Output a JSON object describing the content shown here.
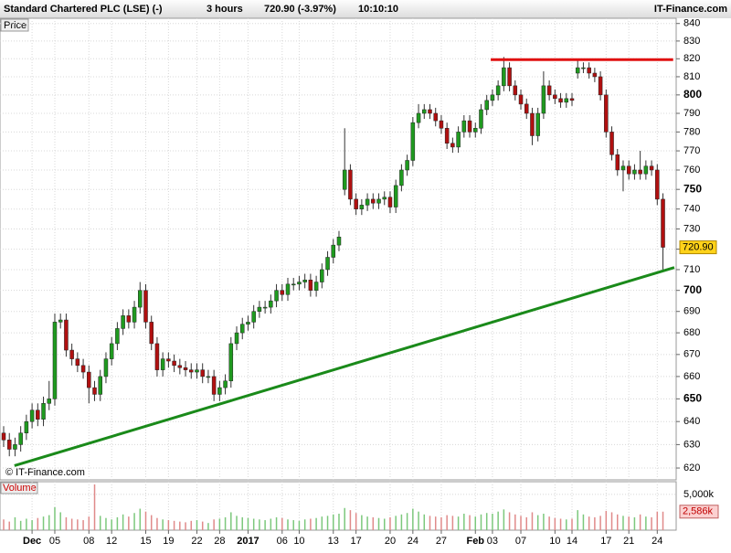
{
  "chart_data": {
    "type": "candlestick",
    "title": "Standard Chartered PLC (LSE) (-)",
    "interval": "3 hours",
    "quote": "720.90 (-3.97%)",
    "time": "10:10:10",
    "brand": "IT-Finance.com",
    "price_label": "Price",
    "volume_label": "Volume",
    "watermark": "© IT-Finance.com",
    "log_scale": true,
    "grid": true,
    "up_color": "#1f9a1f",
    "down_color": "#b01010",
    "ylim": [
      615,
      843
    ],
    "yticks": [
      620,
      630,
      640,
      650,
      660,
      670,
      680,
      690,
      700,
      710,
      720,
      730,
      740,
      750,
      760,
      770,
      780,
      790,
      800,
      810,
      820,
      830,
      840
    ],
    "xticks": [
      {
        "value": 5,
        "label": "Dec"
      },
      {
        "value": 9,
        "label": "05"
      },
      {
        "value": 15,
        "label": "08"
      },
      {
        "value": 19,
        "label": "12"
      },
      {
        "value": 25,
        "label": "15"
      },
      {
        "value": 29,
        "label": "19"
      },
      {
        "value": 34,
        "label": "22"
      },
      {
        "value": 38,
        "label": "28"
      },
      {
        "value": 43,
        "label": "2017"
      },
      {
        "value": 49,
        "label": "06"
      },
      {
        "value": 52,
        "label": "10"
      },
      {
        "value": 58,
        "label": "13"
      },
      {
        "value": 62,
        "label": "17"
      },
      {
        "value": 68,
        "label": "20"
      },
      {
        "value": 72,
        "label": "24"
      },
      {
        "value": 77,
        "label": "27"
      },
      {
        "value": 83,
        "label": "Feb"
      },
      {
        "value": 86,
        "label": "03"
      },
      {
        "value": 91,
        "label": "07"
      },
      {
        "value": 97,
        "label": "10"
      },
      {
        "value": 100,
        "label": "14"
      },
      {
        "value": 106,
        "label": "17"
      },
      {
        "value": 110,
        "label": "21"
      },
      {
        "value": 115,
        "label": "24"
      }
    ],
    "open": [
      635,
      632,
      628,
      630,
      635,
      640,
      645,
      641,
      648,
      650,
      685,
      686,
      672,
      668,
      665,
      662,
      655,
      652,
      660,
      668,
      675,
      682,
      688,
      685,
      692,
      700,
      685,
      675,
      663,
      668,
      667,
      665,
      664,
      663,
      662,
      663,
      660,
      660,
      652,
      655,
      658,
      675,
      680,
      684,
      685,
      690,
      692,
      692,
      695,
      700,
      698,
      703,
      703,
      704,
      705,
      700,
      704,
      710,
      716,
      722,
      750,
      760,
      745,
      740,
      742,
      745,
      743,
      745,
      746,
      741,
      752,
      760,
      765,
      785,
      790,
      792,
      790,
      786,
      782,
      774,
      772,
      780,
      786,
      780,
      782,
      792,
      797,
      800,
      805,
      815,
      805,
      800,
      795,
      790,
      778,
      790,
      805,
      800,
      798,
      796,
      798,
      812,
      815,
      815,
      812,
      810,
      800,
      780,
      768,
      760,
      762,
      758,
      760,
      758,
      762,
      760,
      745
    ],
    "high": [
      638,
      635,
      633,
      638,
      643,
      648,
      648,
      651,
      658,
      689,
      689,
      689,
      675,
      671,
      668,
      665,
      658,
      663,
      671,
      678,
      685,
      691,
      691,
      695,
      704,
      703,
      688,
      678,
      671,
      671,
      670,
      668,
      667,
      666,
      666,
      666,
      663,
      663,
      658,
      661,
      678,
      683,
      687,
      688,
      693,
      695,
      695,
      698,
      703,
      703,
      706,
      706,
      707,
      708,
      708,
      707,
      713,
      719,
      725,
      729,
      782,
      763,
      748,
      745,
      748,
      748,
      748,
      749,
      749,
      755,
      763,
      768,
      788,
      795,
      795,
      795,
      793,
      789,
      785,
      777,
      783,
      789,
      789,
      785,
      795,
      800,
      803,
      808,
      821,
      818,
      808,
      803,
      798,
      793,
      793,
      813,
      808,
      803,
      801,
      801,
      801,
      820,
      818,
      818,
      815,
      813,
      803,
      783,
      771,
      765,
      765,
      763,
      770,
      765,
      765,
      763,
      748
    ],
    "low": [
      629,
      625,
      625,
      627,
      632,
      637,
      638,
      638,
      645,
      647,
      682,
      669,
      665,
      662,
      659,
      648,
      649,
      649,
      657,
      665,
      672,
      679,
      682,
      682,
      689,
      682,
      672,
      660,
      660,
      664,
      662,
      661,
      660,
      659,
      659,
      657,
      657,
      649,
      649,
      652,
      655,
      672,
      677,
      681,
      682,
      687,
      689,
      689,
      692,
      695,
      695,
      700,
      700,
      701,
      697,
      697,
      701,
      707,
      713,
      719,
      747,
      742,
      737,
      737,
      739,
      740,
      740,
      742,
      738,
      738,
      749,
      757,
      762,
      782,
      787,
      787,
      783,
      779,
      771,
      769,
      769,
      777,
      777,
      777,
      779,
      789,
      794,
      797,
      802,
      802,
      797,
      792,
      787,
      773,
      775,
      787,
      797,
      795,
      793,
      793,
      794,
      809,
      812,
      809,
      807,
      797,
      777,
      765,
      757,
      749,
      755,
      755,
      755,
      755,
      757,
      742,
      710
    ],
    "close": [
      632,
      628,
      630,
      635,
      640,
      645,
      641,
      648,
      650,
      685,
      686,
      672,
      668,
      665,
      662,
      655,
      652,
      660,
      668,
      675,
      682,
      688,
      685,
      692,
      700,
      685,
      675,
      663,
      668,
      667,
      665,
      664,
      663,
      662,
      663,
      660,
      660,
      652,
      655,
      658,
      675,
      680,
      684,
      685,
      690,
      692,
      692,
      695,
      700,
      698,
      703,
      703,
      704,
      705,
      700,
      704,
      710,
      716,
      722,
      726,
      760,
      745,
      740,
      742,
      745,
      743,
      745,
      746,
      741,
      752,
      760,
      765,
      785,
      790,
      792,
      790,
      786,
      782,
      774,
      772,
      780,
      786,
      780,
      782,
      792,
      797,
      800,
      805,
      815,
      805,
      800,
      795,
      790,
      778,
      790,
      805,
      800,
      798,
      796,
      798,
      797,
      815,
      815,
      812,
      810,
      800,
      780,
      768,
      760,
      762,
      758,
      760,
      758,
      762,
      760,
      745,
      720.9
    ],
    "volume": [
      1500,
      1200,
      1800,
      1300,
      1600,
      1400,
      1700,
      1900,
      2100,
      3200,
      2500,
      1800,
      1600,
      1500,
      1400,
      1900,
      6400,
      2000,
      1700,
      1500,
      1800,
      2200,
      1900,
      2400,
      3000,
      2600,
      2100,
      1700,
      1500,
      1400,
      1300,
      1200,
      1100,
      1300,
      1400,
      1200,
      1000,
      1500,
      1600,
      1800,
      2500,
      2000,
      1800,
      1700,
      1600,
      1500,
      1400,
      1600,
      1800,
      1700,
      1500,
      1400,
      1300,
      1500,
      1600,
      1700,
      1900,
      2000,
      2200,
      2300,
      3100,
      2800,
      2400,
      2100,
      1900,
      1800,
      1700,
      1600,
      1800,
      2000,
      2200,
      2400,
      3000,
      2600,
      2200,
      2000,
      1900,
      1800,
      2100,
      2000,
      1900,
      2300,
      2100,
      1900,
      2200,
      2400,
      2300,
      2600,
      2900,
      2500,
      2200,
      2000,
      1800,
      2500,
      2100,
      2300,
      1900,
      1700,
      1600,
      1500,
      1600,
      2800,
      2200,
      1900,
      1800,
      2000,
      2700,
      2500,
      2200,
      2000,
      1900,
      1800,
      2200,
      1900,
      1800,
      2600,
      2586
    ],
    "volume_ylim": [
      0,
      6650
    ],
    "volume_yticks": [
      {
        "value": 5000,
        "label": "5,000k"
      }
    ],
    "last_price": {
      "value": 720.9,
      "label": "720.90"
    },
    "last_volume": {
      "value": 2586,
      "label": "2,586k"
    },
    "trendlines": [
      {
        "color": "#e01010",
        "x": [
          85.7,
          117.8
        ],
        "y": [
          819.5,
          819.5
        ]
      },
      {
        "color": "#1a8a1a",
        "x": [
          1.9,
          118
        ],
        "y": [
          621,
          711
        ]
      }
    ]
  }
}
